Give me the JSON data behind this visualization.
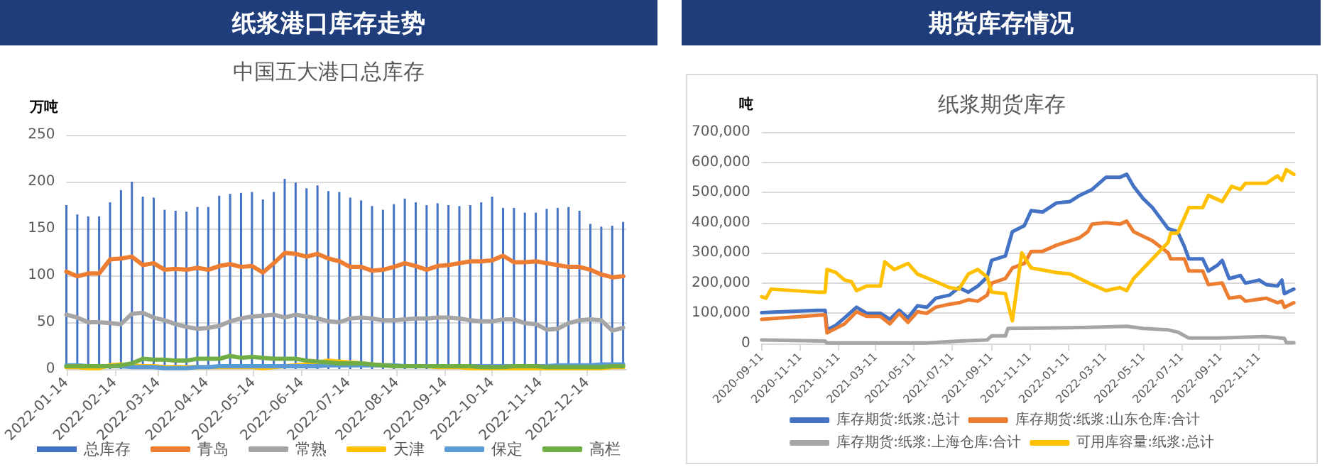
{
  "chart_data": [
    {
      "type": "line",
      "title": "纸浆港口库存走势",
      "subtitle": "中国五大港口总库存",
      "ylabel": "万吨",
      "x": [
        "2022-01-14",
        "2022-01-21",
        "2022-01-28",
        "2022-02-04",
        "2022-02-11",
        "2022-02-18",
        "2022-02-25",
        "2022-03-04",
        "2022-03-11",
        "2022-03-18",
        "2022-03-25",
        "2022-04-01",
        "2022-04-08",
        "2022-04-15",
        "2022-04-22",
        "2022-04-29",
        "2022-05-06",
        "2022-05-13",
        "2022-05-20",
        "2022-05-27",
        "2022-06-03",
        "2022-06-10",
        "2022-06-17",
        "2022-06-24",
        "2022-07-01",
        "2022-07-08",
        "2022-07-15",
        "2022-07-22",
        "2022-07-29",
        "2022-08-05",
        "2022-08-12",
        "2022-08-19",
        "2022-08-26",
        "2022-09-02",
        "2022-09-09",
        "2022-09-16",
        "2022-09-23",
        "2022-09-30",
        "2022-10-07",
        "2022-10-14",
        "2022-10-21",
        "2022-10-28",
        "2022-11-04",
        "2022-11-11",
        "2022-11-18",
        "2022-11-25",
        "2022-12-02",
        "2022-12-09",
        "2022-12-16",
        "2022-12-23",
        "2022-12-30",
        "2023-01-06"
      ],
      "xlim": [
        "2022-01-14",
        "2023-01-08"
      ],
      "xticks": [
        "2022-01-14",
        "2022-02-14",
        "2022-03-14",
        "2022-04-14",
        "2022-05-14",
        "2022-06-14",
        "2022-07-14",
        "2022-08-14",
        "2022-09-14",
        "2022-10-14",
        "2022-11-14",
        "2022-12-14"
      ],
      "ylim": [
        0,
        250
      ],
      "yticks": [
        0,
        50,
        100,
        150,
        200,
        250
      ],
      "grid": "y",
      "legend": "bottom",
      "marker": "none",
      "line_style": "solid",
      "series": [
        {
          "name": "总库存",
          "type": "bar",
          "color": "#4472c4",
          "values": [
            175,
            165,
            163,
            163,
            178,
            191,
            200,
            184,
            183,
            170,
            169,
            168,
            173,
            173,
            185,
            187,
            188,
            189,
            181,
            189,
            203,
            199,
            193,
            196,
            190,
            189,
            183,
            180,
            174,
            170,
            176,
            182,
            178,
            175,
            177,
            175,
            174,
            175,
            178,
            184,
            172,
            172,
            167,
            167,
            171,
            172,
            173,
            169,
            155,
            152,
            153,
            157
          ]
        },
        {
          "name": "青岛",
          "color": "#ed7d31",
          "values": [
            104,
            99,
            102,
            102,
            117,
            118,
            120,
            111,
            113,
            106,
            107,
            106,
            108,
            106,
            110,
            112,
            109,
            110,
            103,
            113,
            124,
            123,
            120,
            123,
            118,
            115,
            109,
            109,
            105,
            106,
            109,
            113,
            110,
            106,
            110,
            111,
            113,
            115,
            115,
            116,
            121,
            114,
            114,
            115,
            113,
            111,
            109,
            109,
            106,
            101,
            98,
            99
          ]
        },
        {
          "name": "常熟",
          "color": "#a5a5a5",
          "values": [
            58,
            55,
            50,
            50,
            49,
            48,
            59,
            60,
            55,
            52,
            48,
            45,
            43,
            44,
            46,
            51,
            54,
            56,
            57,
            58,
            55,
            58,
            56,
            54,
            51,
            50,
            54,
            55,
            54,
            52,
            52,
            53,
            54,
            54,
            55,
            55,
            54,
            52,
            51,
            51,
            53,
            53,
            49,
            48,
            42,
            43,
            49,
            52,
            53,
            52,
            41,
            44
          ]
        },
        {
          "name": "天津",
          "color": "#ffc000",
          "values": [
            2,
            2,
            1,
            1,
            4,
            5,
            4,
            3,
            3,
            2,
            2,
            2,
            2,
            2,
            2,
            2,
            2,
            2,
            1,
            2,
            3,
            4,
            5,
            7,
            9,
            8,
            7,
            6,
            5,
            4,
            4,
            null,
            null,
            3,
            2,
            2,
            2,
            1,
            1,
            1,
            1,
            1,
            1,
            1,
            1,
            1,
            1,
            1,
            1,
            1,
            2,
            2
          ]
        },
        {
          "name": "保定",
          "color": "#5b9bd5",
          "values": [
            4,
            4,
            3,
            3,
            3,
            3,
            2,
            2,
            2,
            1,
            1,
            1,
            2,
            2,
            3,
            3,
            3,
            3,
            3,
            3,
            3,
            3,
            3,
            3,
            4,
            4,
            4,
            4,
            4,
            4,
            4,
            3,
            3,
            3,
            3,
            3,
            3,
            3,
            3,
            3,
            3,
            3,
            3,
            3,
            3,
            4,
            4,
            4,
            4,
            5,
            5,
            5
          ]
        },
        {
          "name": "高栏",
          "color": "#70ad47",
          "values": [
            3,
            3,
            3,
            3,
            3,
            4,
            6,
            11,
            10,
            10,
            9,
            9,
            11,
            11,
            11,
            14,
            12,
            13,
            12,
            11,
            11,
            11,
            9,
            8,
            7,
            6,
            6,
            6,
            5,
            4,
            3,
            3,
            3,
            3,
            3,
            3,
            3,
            3,
            2,
            2,
            2,
            3,
            3,
            3,
            2,
            2,
            2,
            2,
            2,
            2,
            3,
            3
          ]
        }
      ]
    },
    {
      "type": "line",
      "title": "期货库存情况",
      "subtitle": "纸浆期货库存",
      "ylabel": "吨",
      "xlim": [
        "2020-09-11",
        "2023-01-08"
      ],
      "xticks": [
        "2020-09-11",
        "2020-11-11",
        "2021-01-11",
        "2021-03-11",
        "2021-05-11",
        "2021-07-11",
        "2021-09-11",
        "2021-11-11",
        "2022-01-11",
        "2022-03-11",
        "2022-05-11",
        "2022-07-11",
        "2022-09-11",
        "2022-11-11"
      ],
      "ylim": [
        0,
        700000
      ],
      "yticks": [
        0,
        {
          "value": 100000,
          "label": "100,000"
        },
        {
          "value": 200000,
          "label": "200,000"
        },
        {
          "value": 300000,
          "label": "300,000"
        },
        {
          "value": 400000,
          "label": "400,000"
        },
        {
          "value": 500000,
          "label": "500,000"
        },
        {
          "value": 600000,
          "label": "600,000"
        },
        {
          "value": 700000,
          "label": "700,000"
        }
      ],
      "grid": "y",
      "legend": "bottom",
      "marker": "none",
      "line_style": "solid",
      "series": [
        {
          "name": "库存期货:纸浆:总计",
          "color": "#4472c4",
          "x": [
            "2020-09-11",
            "2020-12-08",
            "2020-12-21",
            "2020-12-24",
            "2021-01-07",
            "2021-01-21",
            "2021-02-09",
            "2021-02-25",
            "2021-03-19",
            "2021-04-03",
            "2021-04-18",
            "2021-05-02",
            "2021-05-17",
            "2021-06-01",
            "2021-06-15",
            "2021-07-07",
            "2021-07-22",
            "2021-08-06",
            "2021-08-21",
            "2021-09-05",
            "2021-09-12",
            "2021-10-04",
            "2021-10-15",
            "2021-11-03",
            "2021-11-14",
            "2021-12-02",
            "2021-12-24",
            "2022-01-15",
            "2022-01-30",
            "2022-02-19",
            "2022-03-13",
            "2022-04-04",
            "2022-04-15",
            "2022-04-26",
            "2022-05-11",
            "2022-05-26",
            "2022-06-20",
            "2022-07-05",
            "2022-07-16",
            "2022-07-23",
            "2022-08-14",
            "2022-08-23",
            "2022-09-07",
            "2022-09-14",
            "2022-09-25",
            "2022-10-13",
            "2022-10-21",
            "2022-11-12",
            "2022-11-23",
            "2022-12-11",
            "2022-12-18",
            "2022-12-22",
            "2023-01-06"
          ],
          "values": [
            102000,
            110000,
            110000,
            45000,
            60000,
            85000,
            120000,
            100000,
            100000,
            80000,
            110000,
            85000,
            125000,
            120000,
            150000,
            160000,
            185000,
            170000,
            190000,
            220000,
            275000,
            290000,
            370000,
            390000,
            440000,
            435000,
            465000,
            470000,
            490000,
            510000,
            550000,
            550000,
            560000,
            520000,
            480000,
            450000,
            380000,
            370000,
            320000,
            280000,
            280000,
            240000,
            260000,
            275000,
            215000,
            225000,
            200000,
            210000,
            195000,
            190000,
            210000,
            165000,
            180000
          ]
        },
        {
          "name": "库存期货:纸浆:山东仓库:合计",
          "color": "#ed7d31",
          "x": [
            "2020-09-11",
            "2020-12-21",
            "2020-12-24",
            "2021-01-21",
            "2021-02-09",
            "2021-02-25",
            "2021-03-19",
            "2021-04-03",
            "2021-04-18",
            "2021-05-02",
            "2021-05-17",
            "2021-06-01",
            "2021-06-15",
            "2021-07-07",
            "2021-07-22",
            "2021-08-06",
            "2021-08-21",
            "2021-09-05",
            "2021-09-12",
            "2021-10-04",
            "2021-10-15",
            "2021-11-03",
            "2021-11-14",
            "2021-12-02",
            "2021-12-24",
            "2022-01-30",
            "2022-02-12",
            "2022-02-19",
            "2022-03-13",
            "2022-04-04",
            "2022-04-15",
            "2022-04-26",
            "2022-05-26",
            "2022-06-20",
            "2022-06-24",
            "2022-07-16",
            "2022-07-23",
            "2022-08-14",
            "2022-08-23",
            "2022-09-14",
            "2022-09-25",
            "2022-10-13",
            "2022-10-21",
            "2022-11-23",
            "2022-12-11",
            "2022-12-18",
            "2022-12-22",
            "2023-01-06"
          ],
          "values": [
            80000,
            95000,
            35000,
            65000,
            105000,
            90000,
            90000,
            65000,
            100000,
            70000,
            105000,
            100000,
            120000,
            130000,
            135000,
            145000,
            140000,
            160000,
            200000,
            215000,
            250000,
            265000,
            305000,
            305000,
            325000,
            350000,
            370000,
            395000,
            400000,
            395000,
            405000,
            370000,
            340000,
            300000,
            280000,
            280000,
            240000,
            240000,
            195000,
            200000,
            150000,
            155000,
            140000,
            150000,
            135000,
            140000,
            120000,
            135000
          ]
        },
        {
          "name": "库存期货:纸浆:上海仓库:合计",
          "color": "#a5a5a5",
          "x": [
            "2020-09-11",
            "2020-12-21",
            "2020-12-24",
            "2021-06-01",
            "2021-07-22",
            "2021-09-05",
            "2021-09-12",
            "2021-10-04",
            "2021-10-08",
            "2022-01-15",
            "2022-04-15",
            "2022-05-11",
            "2022-06-20",
            "2022-07-05",
            "2022-07-23",
            "2022-09-07",
            "2022-11-23",
            "2022-12-22",
            "2022-12-25",
            "2023-01-06"
          ],
          "values": [
            12000,
            8000,
            2000,
            2000,
            8000,
            12000,
            25000,
            25000,
            50000,
            52000,
            57000,
            50000,
            45000,
            38000,
            18000,
            18000,
            23000,
            17000,
            3000,
            3000
          ]
        },
        {
          "name": "可用库容量:纸浆:总计",
          "color": "#ffc000",
          "x": [
            "2020-09-11",
            "2020-09-18",
            "2020-09-26",
            "2020-12-08",
            "2020-12-21",
            "2020-12-24",
            "2021-01-07",
            "2021-01-21",
            "2021-02-01",
            "2021-02-09",
            "2021-02-25",
            "2021-03-19",
            "2021-03-26",
            "2021-04-10",
            "2021-05-02",
            "2021-05-17",
            "2021-06-15",
            "2021-07-07",
            "2021-07-22",
            "2021-08-06",
            "2021-08-21",
            "2021-09-05",
            "2021-09-12",
            "2021-10-04",
            "2021-10-15",
            "2021-10-30",
            "2021-11-14",
            "2021-12-24",
            "2022-01-15",
            "2022-01-30",
            "2022-02-19",
            "2022-03-13",
            "2022-04-04",
            "2022-04-15",
            "2022-04-26",
            "2022-05-26",
            "2022-06-20",
            "2022-06-24",
            "2022-07-05",
            "2022-07-23",
            "2022-08-14",
            "2022-08-23",
            "2022-09-14",
            "2022-09-29",
            "2022-10-13",
            "2022-10-21",
            "2022-11-23",
            "2022-12-11",
            "2022-12-18",
            "2022-12-25",
            "2023-01-06"
          ],
          "values": [
            155000,
            150000,
            180000,
            170000,
            170000,
            245000,
            235000,
            210000,
            205000,
            175000,
            190000,
            190000,
            270000,
            245000,
            265000,
            230000,
            205000,
            185000,
            180000,
            230000,
            245000,
            220000,
            170000,
            165000,
            75000,
            300000,
            250000,
            235000,
            230000,
            215000,
            195000,
            175000,
            185000,
            175000,
            215000,
            280000,
            335000,
            365000,
            365000,
            450000,
            450000,
            490000,
            470000,
            520000,
            510000,
            530000,
            530000,
            555000,
            540000,
            575000,
            560000
          ]
        }
      ]
    }
  ]
}
